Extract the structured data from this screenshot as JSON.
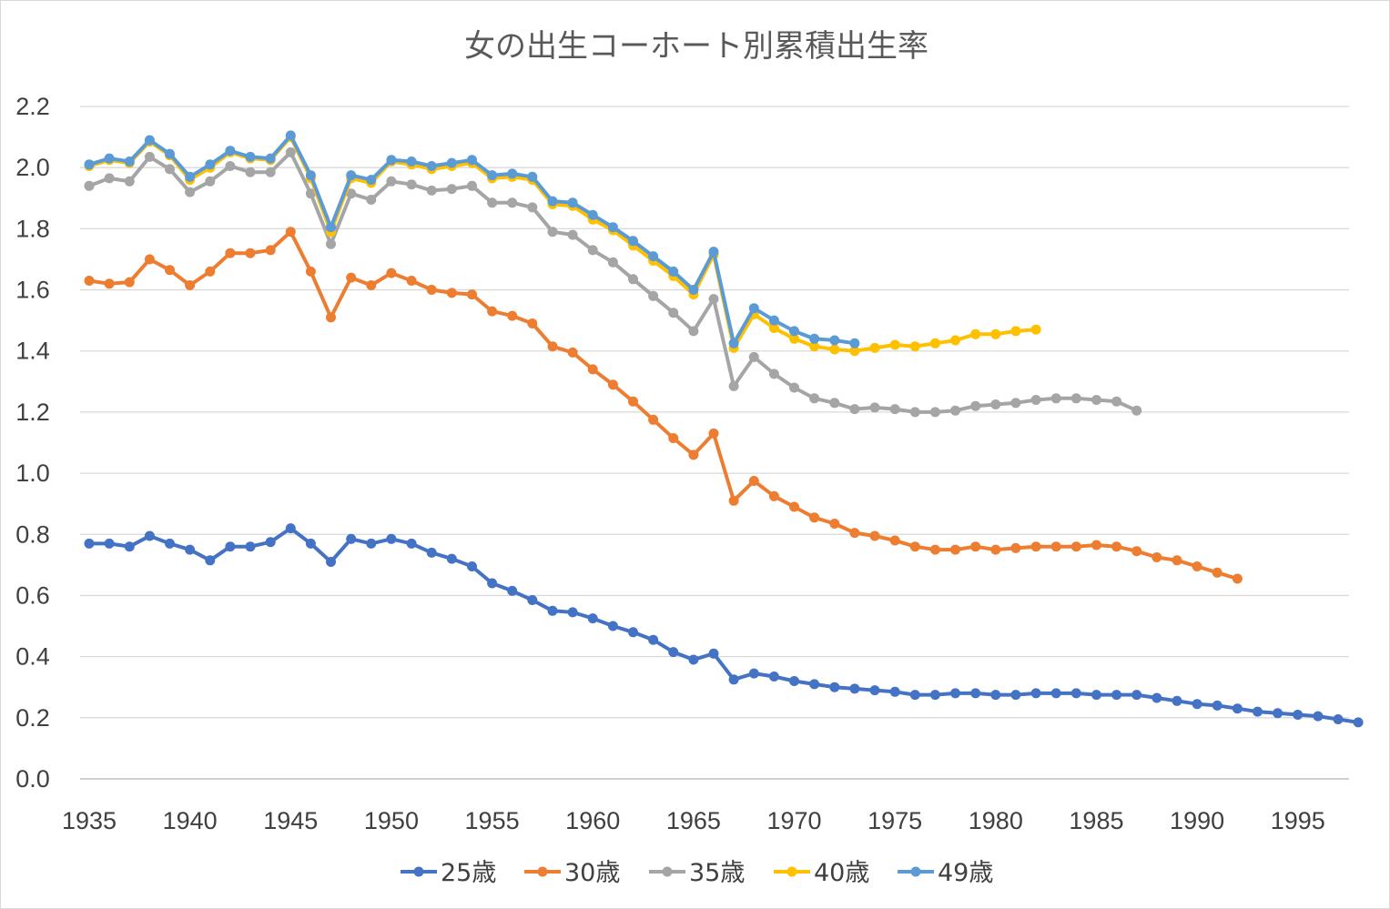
{
  "chart_data": {
    "type": "line",
    "title": "女の出生コーホート別累積出生率",
    "xlabel": "",
    "ylabel": "",
    "xlim": [
      1935,
      1997
    ],
    "ylim": [
      0,
      2.2
    ],
    "x_ticks": [
      "1935",
      "1940",
      "1945",
      "1950",
      "1955",
      "1960",
      "1965",
      "1970",
      "1975",
      "1980",
      "1985",
      "1990",
      "1995"
    ],
    "y_ticks": [
      "0.0",
      "0.2",
      "0.4",
      "0.6",
      "0.8",
      "1.0",
      "1.2",
      "1.4",
      "1.6",
      "1.8",
      "2.0",
      "2.2"
    ],
    "grid": true,
    "legend_position": "bottom",
    "series": [
      {
        "name": "25歳",
        "color": "#4472C4",
        "start_year": 1935,
        "values": [
          0.77,
          0.77,
          0.76,
          0.795,
          0.77,
          0.75,
          0.715,
          0.76,
          0.76,
          0.775,
          0.82,
          0.77,
          0.71,
          0.785,
          0.77,
          0.785,
          0.77,
          0.74,
          0.72,
          0.695,
          0.64,
          0.615,
          0.585,
          0.55,
          0.545,
          0.525,
          0.5,
          0.48,
          0.455,
          0.415,
          0.39,
          0.41,
          0.325,
          0.345,
          0.335,
          0.32,
          0.31,
          0.3,
          0.295,
          0.29,
          0.285,
          0.275,
          0.275,
          0.28,
          0.28,
          0.275,
          0.275,
          0.28,
          0.28,
          0.28,
          0.275,
          0.275,
          0.275,
          0.265,
          0.255,
          0.245,
          0.24,
          0.23,
          0.22,
          0.215,
          0.21,
          0.205,
          0.195,
          0.185
        ]
      },
      {
        "name": "30歳",
        "color": "#ED7D31",
        "start_year": 1935,
        "values": [
          1.63,
          1.62,
          1.625,
          1.7,
          1.665,
          1.615,
          1.66,
          1.72,
          1.72,
          1.73,
          1.79,
          1.66,
          1.51,
          1.64,
          1.615,
          1.655,
          1.63,
          1.6,
          1.59,
          1.585,
          1.53,
          1.515,
          1.49,
          1.415,
          1.395,
          1.34,
          1.29,
          1.235,
          1.175,
          1.115,
          1.06,
          1.13,
          0.91,
          0.975,
          0.925,
          0.89,
          0.855,
          0.835,
          0.805,
          0.795,
          0.78,
          0.76,
          0.75,
          0.75,
          0.76,
          0.75,
          0.755,
          0.76,
          0.76,
          0.76,
          0.765,
          0.76,
          0.745,
          0.725,
          0.715,
          0.695,
          0.675,
          0.655
        ]
      },
      {
        "name": "35歳",
        "color": "#A5A5A5",
        "start_year": 1935,
        "values": [
          1.94,
          1.965,
          1.955,
          2.035,
          1.995,
          1.92,
          1.955,
          2.005,
          1.985,
          1.985,
          2.05,
          1.915,
          1.75,
          1.915,
          1.895,
          1.955,
          1.945,
          1.925,
          1.93,
          1.94,
          1.885,
          1.885,
          1.87,
          1.79,
          1.78,
          1.73,
          1.69,
          1.635,
          1.58,
          1.525,
          1.465,
          1.57,
          1.285,
          1.38,
          1.325,
          1.28,
          1.245,
          1.23,
          1.21,
          1.215,
          1.21,
          1.2,
          1.2,
          1.205,
          1.22,
          1.225,
          1.23,
          1.24,
          1.245,
          1.245,
          1.24,
          1.235,
          1.205
        ]
      },
      {
        "name": "40歳",
        "color": "#FFC000",
        "start_year": 1935,
        "values": [
          2.005,
          2.025,
          2.015,
          2.085,
          2.04,
          1.96,
          2.0,
          2.05,
          2.03,
          2.025,
          2.1,
          1.965,
          1.79,
          1.965,
          1.95,
          2.02,
          2.01,
          1.995,
          2.005,
          2.015,
          1.965,
          1.97,
          1.96,
          1.88,
          1.875,
          1.83,
          1.795,
          1.745,
          1.695,
          1.645,
          1.585,
          1.715,
          1.41,
          1.52,
          1.475,
          1.44,
          1.415,
          1.405,
          1.4,
          1.41,
          1.42,
          1.415,
          1.425,
          1.435,
          1.455,
          1.455,
          1.465,
          1.47
        ]
      },
      {
        "name": "49歳",
        "color": "#5B9BD5",
        "start_year": 1935,
        "values": [
          2.01,
          2.03,
          2.02,
          2.09,
          2.045,
          1.97,
          2.01,
          2.055,
          2.035,
          2.03,
          2.105,
          1.975,
          1.805,
          1.975,
          1.96,
          2.025,
          2.02,
          2.005,
          2.015,
          2.025,
          1.975,
          1.98,
          1.97,
          1.89,
          1.885,
          1.845,
          1.805,
          1.76,
          1.71,
          1.66,
          1.6,
          1.725,
          1.425,
          1.54,
          1.5,
          1.465,
          1.44,
          1.435,
          1.425
        ]
      }
    ]
  }
}
